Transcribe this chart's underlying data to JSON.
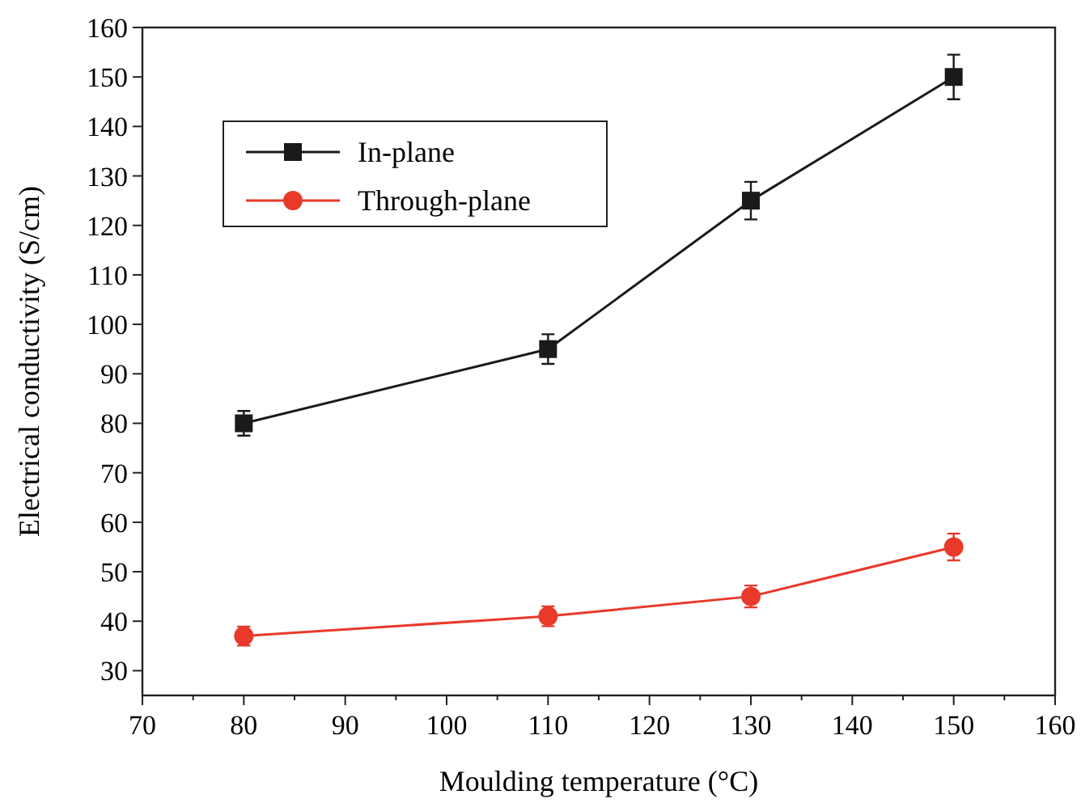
{
  "chart_data": {
    "type": "line",
    "xlabel": "Moulding temperature (°C)",
    "ylabel": "Electrical conductivity (S/cm)",
    "x": [
      80,
      110,
      130,
      150
    ],
    "series": [
      {
        "name": "In-plane",
        "color": "#1a1a1a",
        "marker": "square",
        "values": [
          80,
          95,
          125,
          150
        ],
        "errors": [
          2.5,
          3,
          3.8,
          4.5
        ]
      },
      {
        "name": "Through-plane",
        "color": "#e8392a",
        "marker": "circle",
        "values": [
          37,
          41,
          45,
          55
        ],
        "errors": [
          1.9,
          2,
          2.2,
          2.7
        ]
      }
    ],
    "xlim": [
      70,
      160
    ],
    "xticks": [
      70,
      80,
      90,
      100,
      110,
      120,
      130,
      140,
      150,
      160
    ],
    "ylim": [
      25,
      160
    ],
    "yticks": [
      30,
      40,
      50,
      60,
      70,
      80,
      90,
      100,
      110,
      120,
      130,
      140,
      150,
      160
    ],
    "legend": "top left",
    "grid": false,
    "line_style": "solid"
  }
}
